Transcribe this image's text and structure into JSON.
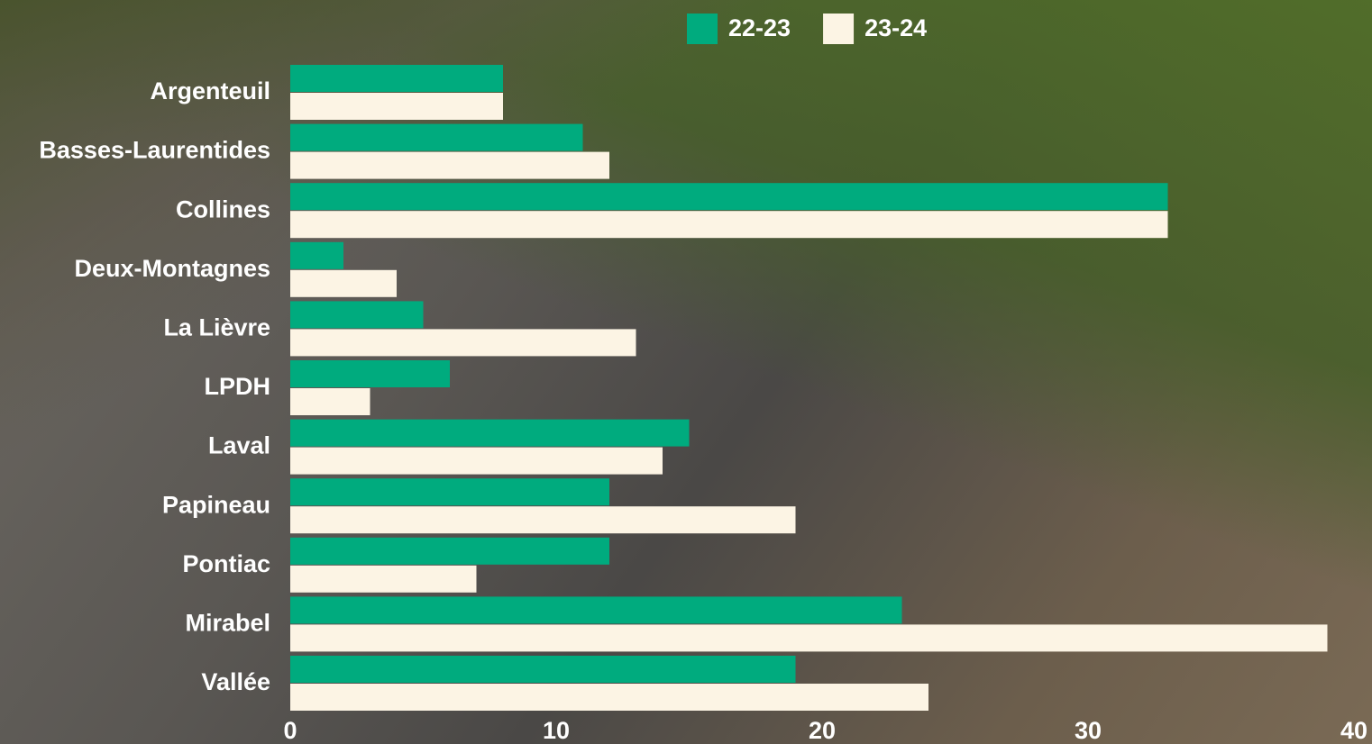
{
  "chart_data": {
    "type": "bar",
    "orientation": "horizontal",
    "categories": [
      "Argenteuil",
      "Basses-Laurentides",
      "Collines",
      "Deux-Montagnes",
      "La Lièvre",
      "LPDH",
      "Laval",
      "Papineau",
      "Pontiac",
      "Mirabel",
      "Vallée"
    ],
    "series": [
      {
        "name": "22-23",
        "color": "#00ab7e",
        "values": [
          8,
          11,
          33,
          2,
          5,
          6,
          15,
          12,
          12,
          23,
          19
        ]
      },
      {
        "name": "23-24",
        "color": "#fcf4e4",
        "values": [
          8,
          12,
          33,
          4,
          13,
          3,
          14,
          19,
          7,
          39,
          24
        ]
      }
    ],
    "xlim": [
      0,
      40
    ],
    "xticks": [
      0,
      10,
      20,
      30,
      40
    ],
    "grid": false,
    "legend": "top"
  }
}
